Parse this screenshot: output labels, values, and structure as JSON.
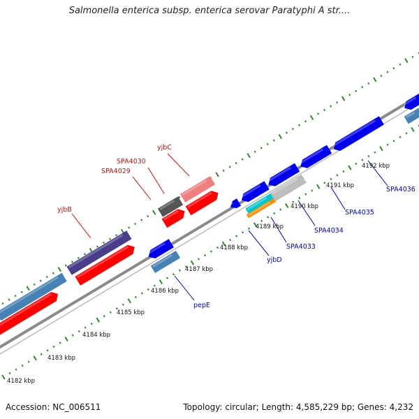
{
  "title": "Salmonella enterica subsp. enterica serovar Paratyphi A str....",
  "footer": {
    "accession": "Accession: NC_006511",
    "summary": "Topology: circular; Length: 4,585,229 bp; Genes: 4,232"
  },
  "colors": {
    "backbone": "#8a8a8a",
    "tick_mark": "#2a8a2a",
    "forward_label": "#d01010",
    "reverse_label": "#0000cc",
    "red": "#ff0000",
    "blue": "#0000ee",
    "steel": "#4682b4",
    "purple": "#483d8b",
    "pink": "#f08080",
    "gray": "#555555",
    "silver": "#bdbdbd",
    "cyan": "#00c8d0",
    "orange": "#ff8c00"
  },
  "ticks": [
    "4182 kbp",
    "4183 kbp",
    "4184 kbp",
    "4185 kbp",
    "4186 kbp",
    "4187 kbp",
    "4188 kbp",
    "4189 kbp",
    "4190 kbp",
    "4191 kbp",
    "4192 kbp"
  ],
  "labels": {
    "yjbB": "yjbB",
    "SPA4029": "SPA4029",
    "SPA4030": "SPA4030",
    "yjbC": "yjbC",
    "pepE": "pepE",
    "yjbD": "yjbD",
    "SPA4033": "SPA4033",
    "SPA4034": "SPA4034",
    "SPA4035": "SPA4035",
    "SPA4036": "SPA4036"
  }
}
